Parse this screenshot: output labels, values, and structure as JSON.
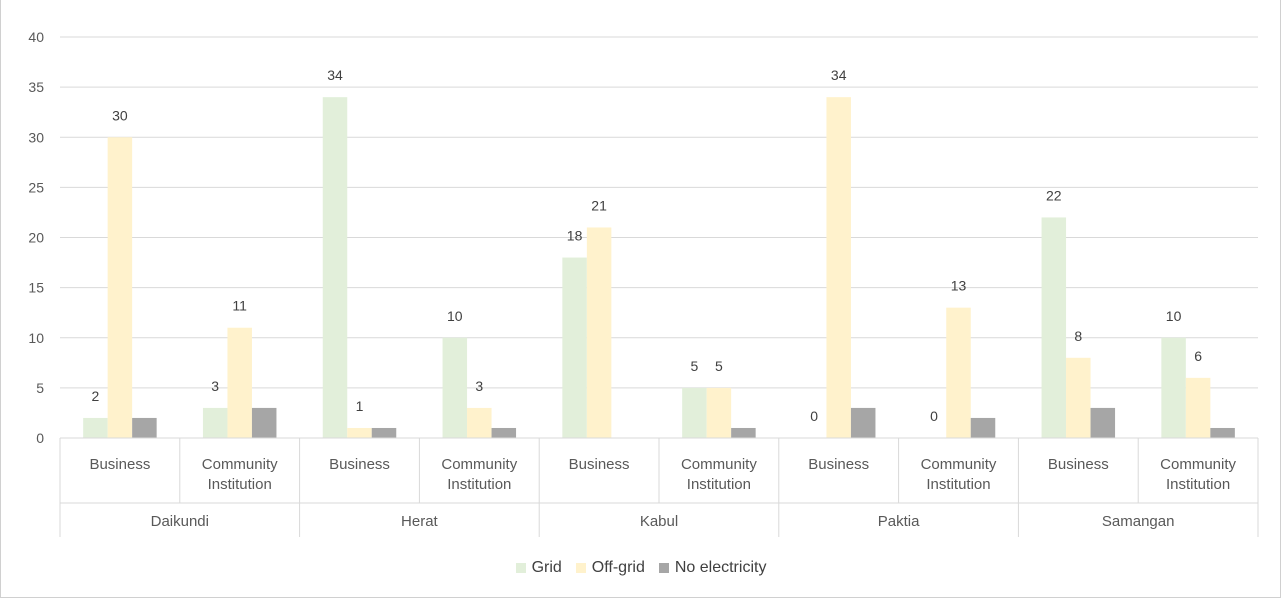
{
  "chart_data": {
    "type": "bar",
    "title": "",
    "groups": [
      {
        "name": "Daikundi",
        "categories": [
          "Business",
          "Community Institution"
        ]
      },
      {
        "name": "Herat",
        "categories": [
          "Business",
          "Community Institution"
        ]
      },
      {
        "name": "Kabul",
        "categories": [
          "Business",
          "Community Institution"
        ]
      },
      {
        "name": "Paktia",
        "categories": [
          "Business",
          "Community Institution"
        ]
      },
      {
        "name": "Samangan",
        "categories": [
          "Business",
          "Community Institution"
        ]
      }
    ],
    "series": [
      {
        "name": "Grid",
        "color": "#e2efda",
        "values": [
          2,
          3,
          34,
          10,
          18,
          5,
          0,
          0,
          22,
          10
        ],
        "labels": [
          "2",
          "3",
          "34",
          "10",
          "18",
          "5",
          "0",
          "0",
          "22",
          "10"
        ]
      },
      {
        "name": "Off-grid",
        "color": "#fff2cc",
        "values": [
          30,
          11,
          1,
          3,
          21,
          5,
          34,
          13,
          8,
          6
        ],
        "labels": [
          "30",
          "11",
          "1",
          "3",
          "21",
          "5",
          "34",
          "13",
          "8",
          "6"
        ]
      },
      {
        "name": "No electricity",
        "color": "#a6a6a6",
        "values": [
          2,
          3,
          1,
          1,
          0,
          1,
          3,
          2,
          3,
          1
        ],
        "labels": [
          "",
          "",
          "",
          "",
          "",
          "",
          "",
          "",
          "",
          ""
        ]
      }
    ],
    "ylim": [
      0,
      40
    ],
    "yticks": [
      0,
      5,
      10,
      15,
      20,
      25,
      30,
      35,
      40
    ],
    "grid": true,
    "legend_position": "bottom"
  }
}
